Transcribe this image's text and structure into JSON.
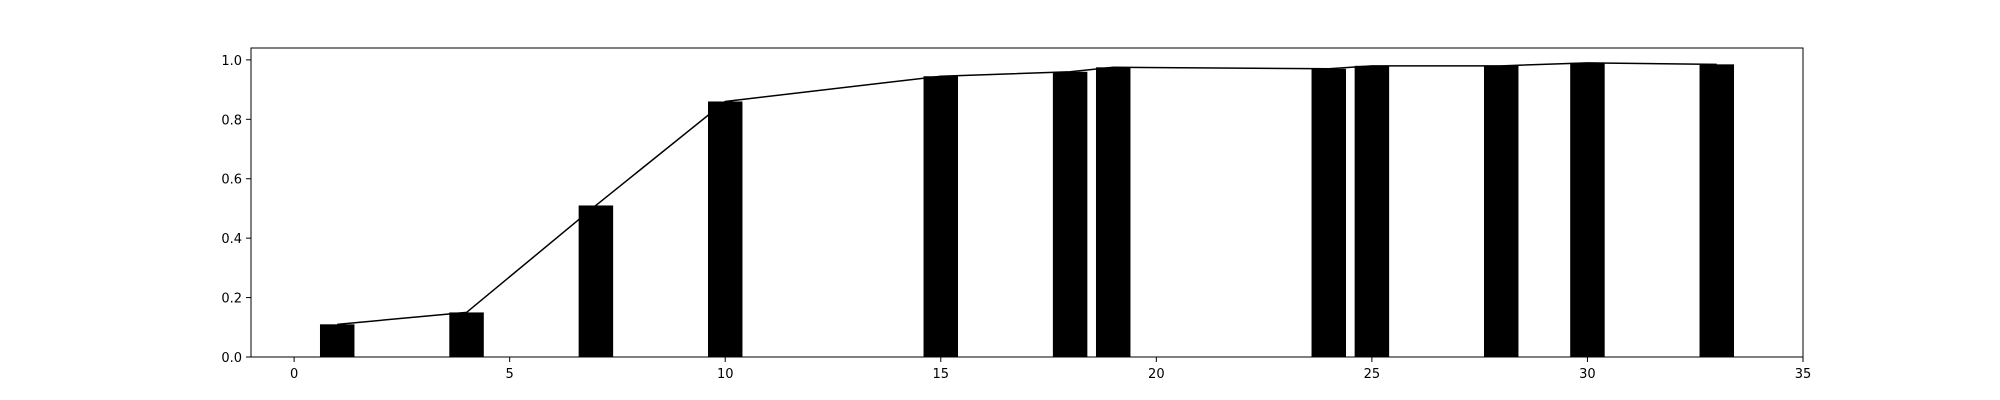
{
  "chart_data": {
    "type": "bar",
    "x": [
      1,
      4,
      7,
      10,
      15,
      18,
      19,
      24,
      25,
      28,
      30,
      33
    ],
    "values": [
      0.11,
      0.15,
      0.51,
      0.86,
      0.945,
      0.96,
      0.975,
      0.97,
      0.98,
      0.98,
      0.99,
      0.985
    ],
    "line": {
      "x": [
        1,
        4,
        7,
        10,
        15,
        18,
        19,
        24,
        25,
        28,
        30,
        33
      ],
      "y": [
        0.11,
        0.15,
        0.51,
        0.86,
        0.945,
        0.96,
        0.975,
        0.97,
        0.98,
        0.98,
        0.99,
        0.985
      ]
    },
    "bar_width": 0.8,
    "xlim": [
      -1,
      35
    ],
    "ylim": [
      0,
      1.04
    ],
    "xticks": [
      0,
      5,
      10,
      15,
      20,
      25,
      30,
      35
    ],
    "yticks": [
      0.0,
      0.2,
      0.4,
      0.6,
      0.8,
      1.0
    ],
    "xtick_labels": [
      "0",
      "5",
      "10",
      "15",
      "20",
      "25",
      "30",
      "35"
    ],
    "ytick_labels": [
      "0.0",
      "0.2",
      "0.4",
      "0.6",
      "0.8",
      "1.0"
    ],
    "title": "",
    "xlabel": "",
    "ylabel": "",
    "grid": false,
    "colors": {
      "bar": "#000000",
      "line": "#000000",
      "axes": "#000000",
      "background": "#ffffff"
    }
  }
}
